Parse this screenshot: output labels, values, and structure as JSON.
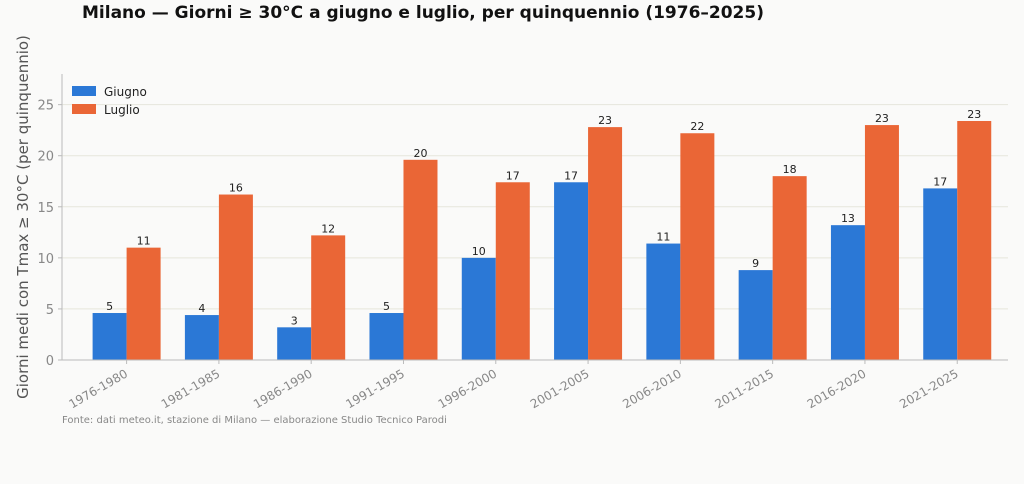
{
  "chart_data": {
    "type": "bar",
    "title": "Milano — Giorni ≥ 30°C a giugno e luglio, per quinquennio (1976–2025)",
    "xlabel": "",
    "ylabel": "Giorni medi con Tmax ≥ 30°C (per quinquennio)",
    "ylim": [
      0,
      28
    ],
    "yticks": [
      0,
      5,
      10,
      15,
      20,
      25
    ],
    "grid": true,
    "legend_position": "top-left",
    "categories": [
      "1976-1980",
      "1981-1985",
      "1986-1990",
      "1991-1995",
      "1996-2000",
      "2001-2005",
      "2006-2010",
      "2011-2015",
      "2016-2020",
      "2021-2025"
    ],
    "series": [
      {
        "name": "Giugno",
        "color": "#2b78d6",
        "values": [
          4.6,
          4.4,
          3.2,
          4.6,
          10.0,
          17.4,
          11.4,
          8.8,
          13.2,
          16.8
        ],
        "labels": [
          "5",
          "4",
          "3",
          "5",
          "10",
          "17",
          "11",
          "9",
          "13",
          "17"
        ]
      },
      {
        "name": "Luglio",
        "color": "#ea6636",
        "values": [
          11.0,
          16.2,
          12.2,
          19.6,
          17.4,
          22.8,
          22.2,
          18.0,
          23.0,
          23.4
        ],
        "labels": [
          "11",
          "16",
          "12",
          "20",
          "17",
          "23",
          "22",
          "18",
          "23",
          "23"
        ]
      }
    ],
    "source": "Fonte: dati meteo.it, stazione di Milano — elaborazione Studio Tecnico Parodi"
  }
}
